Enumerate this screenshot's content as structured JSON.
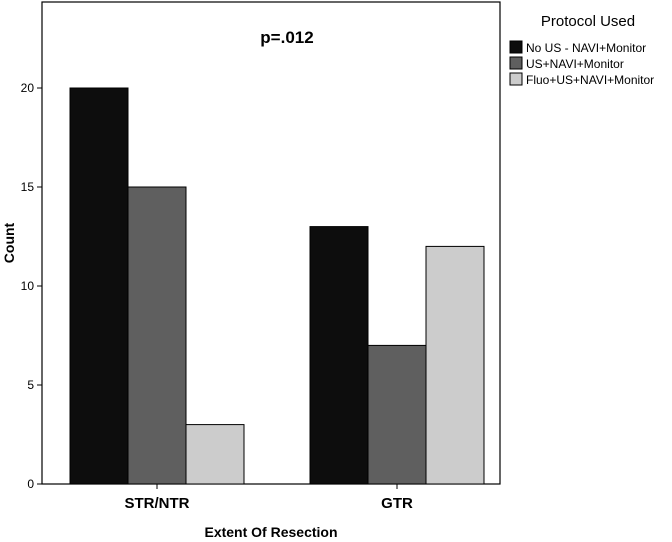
{
  "chart_data": {
    "type": "bar",
    "title": "",
    "annotation": "p=.012",
    "xlabel": "Extent Of Resection",
    "ylabel": "Count",
    "categories": [
      "STR/NTR",
      "GTR"
    ],
    "series": [
      {
        "name": "No US - NAVI+Monitor",
        "values": [
          20,
          13
        ],
        "color": "#0d0d0d"
      },
      {
        "name": "US+NAVI+Monitor",
        "values": [
          15,
          7
        ],
        "color": "#5f5f5f"
      },
      {
        "name": "Fluo+US+NAVI+Monitor",
        "values": [
          3,
          12
        ],
        "color": "#cccccc"
      }
    ],
    "ylim": [
      0,
      24
    ],
    "yticks": [
      0,
      5,
      10,
      15,
      20
    ],
    "legend": {
      "title": "Protocol Used",
      "position": "right"
    },
    "grid": false
  }
}
